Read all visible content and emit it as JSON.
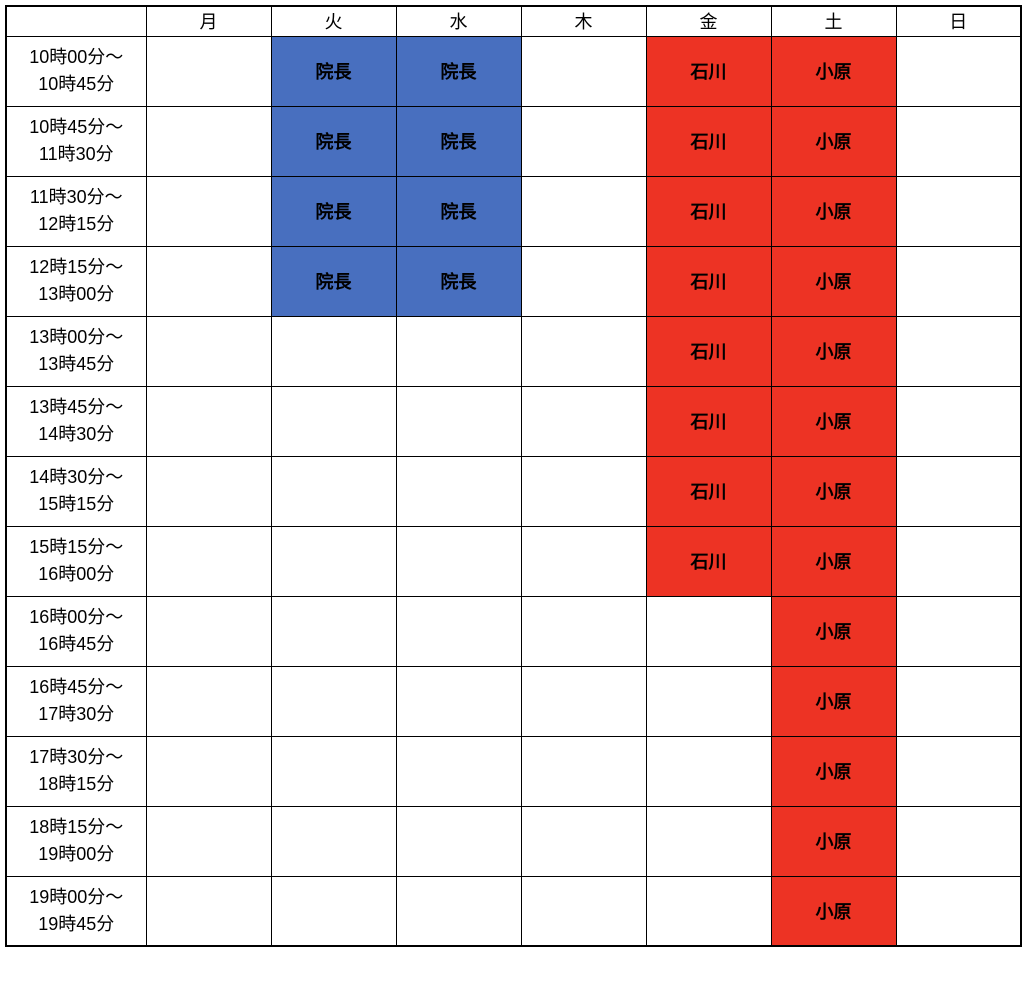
{
  "table": {
    "type": "table",
    "background_color": "#ffffff",
    "border_color": "#000000",
    "cell_colors": {
      "blue": "#486fbf",
      "red": "#ed3324",
      "empty": "#ffffff"
    },
    "text_color": "#000000",
    "header_fontsize": 18,
    "time_fontsize": 18,
    "cell_fontsize": 20,
    "cell_fontweight": "bold",
    "day_headers": [
      "月",
      "火",
      "水",
      "木",
      "金",
      "土",
      "日"
    ],
    "time_slots": [
      "10時00分～\n10時45分",
      "10時45分～\n11時30分",
      "11時30分～\n12時15分",
      "12時15分～\n13時00分",
      "13時00分～\n13時45分",
      "13時45分～\n14時30分",
      "14時30分～\n15時15分",
      "15時15分～\n16時00分",
      "16時00分～\n16時45分",
      "16時45分～\n17時30分",
      "17時30分～\n18時15分",
      "18時15分～\n19時00分",
      "19時00分～\n19時45分"
    ],
    "cells": [
      [
        {
          "text": "",
          "color": "empty"
        },
        {
          "text": "院長",
          "color": "blue"
        },
        {
          "text": "院長",
          "color": "blue"
        },
        {
          "text": "",
          "color": "empty"
        },
        {
          "text": "石川",
          "color": "red"
        },
        {
          "text": "小原",
          "color": "red"
        },
        {
          "text": "",
          "color": "empty"
        }
      ],
      [
        {
          "text": "",
          "color": "empty"
        },
        {
          "text": "院長",
          "color": "blue"
        },
        {
          "text": "院長",
          "color": "blue"
        },
        {
          "text": "",
          "color": "empty"
        },
        {
          "text": "石川",
          "color": "red"
        },
        {
          "text": "小原",
          "color": "red"
        },
        {
          "text": "",
          "color": "empty"
        }
      ],
      [
        {
          "text": "",
          "color": "empty"
        },
        {
          "text": "院長",
          "color": "blue"
        },
        {
          "text": "院長",
          "color": "blue"
        },
        {
          "text": "",
          "color": "empty"
        },
        {
          "text": "石川",
          "color": "red"
        },
        {
          "text": "小原",
          "color": "red"
        },
        {
          "text": "",
          "color": "empty"
        }
      ],
      [
        {
          "text": "",
          "color": "empty"
        },
        {
          "text": "院長",
          "color": "blue"
        },
        {
          "text": "院長",
          "color": "blue"
        },
        {
          "text": "",
          "color": "empty"
        },
        {
          "text": "石川",
          "color": "red"
        },
        {
          "text": "小原",
          "color": "red"
        },
        {
          "text": "",
          "color": "empty"
        }
      ],
      [
        {
          "text": "",
          "color": "empty"
        },
        {
          "text": "",
          "color": "empty"
        },
        {
          "text": "",
          "color": "empty"
        },
        {
          "text": "",
          "color": "empty"
        },
        {
          "text": "石川",
          "color": "red"
        },
        {
          "text": "小原",
          "color": "red"
        },
        {
          "text": "",
          "color": "empty"
        }
      ],
      [
        {
          "text": "",
          "color": "empty"
        },
        {
          "text": "",
          "color": "empty"
        },
        {
          "text": "",
          "color": "empty"
        },
        {
          "text": "",
          "color": "empty"
        },
        {
          "text": "石川",
          "color": "red"
        },
        {
          "text": "小原",
          "color": "red"
        },
        {
          "text": "",
          "color": "empty"
        }
      ],
      [
        {
          "text": "",
          "color": "empty"
        },
        {
          "text": "",
          "color": "empty"
        },
        {
          "text": "",
          "color": "empty"
        },
        {
          "text": "",
          "color": "empty"
        },
        {
          "text": "石川",
          "color": "red"
        },
        {
          "text": "小原",
          "color": "red"
        },
        {
          "text": "",
          "color": "empty"
        }
      ],
      [
        {
          "text": "",
          "color": "empty"
        },
        {
          "text": "",
          "color": "empty"
        },
        {
          "text": "",
          "color": "empty"
        },
        {
          "text": "",
          "color": "empty"
        },
        {
          "text": "石川",
          "color": "red"
        },
        {
          "text": "小原",
          "color": "red"
        },
        {
          "text": "",
          "color": "empty"
        }
      ],
      [
        {
          "text": "",
          "color": "empty"
        },
        {
          "text": "",
          "color": "empty"
        },
        {
          "text": "",
          "color": "empty"
        },
        {
          "text": "",
          "color": "empty"
        },
        {
          "text": "",
          "color": "empty"
        },
        {
          "text": "小原",
          "color": "red"
        },
        {
          "text": "",
          "color": "empty"
        }
      ],
      [
        {
          "text": "",
          "color": "empty"
        },
        {
          "text": "",
          "color": "empty"
        },
        {
          "text": "",
          "color": "empty"
        },
        {
          "text": "",
          "color": "empty"
        },
        {
          "text": "",
          "color": "empty"
        },
        {
          "text": "小原",
          "color": "red"
        },
        {
          "text": "",
          "color": "empty"
        }
      ],
      [
        {
          "text": "",
          "color": "empty"
        },
        {
          "text": "",
          "color": "empty"
        },
        {
          "text": "",
          "color": "empty"
        },
        {
          "text": "",
          "color": "empty"
        },
        {
          "text": "",
          "color": "empty"
        },
        {
          "text": "小原",
          "color": "red"
        },
        {
          "text": "",
          "color": "empty"
        }
      ],
      [
        {
          "text": "",
          "color": "empty"
        },
        {
          "text": "",
          "color": "empty"
        },
        {
          "text": "",
          "color": "empty"
        },
        {
          "text": "",
          "color": "empty"
        },
        {
          "text": "",
          "color": "empty"
        },
        {
          "text": "小原",
          "color": "red"
        },
        {
          "text": "",
          "color": "empty"
        }
      ],
      [
        {
          "text": "",
          "color": "empty"
        },
        {
          "text": "",
          "color": "empty"
        },
        {
          "text": "",
          "color": "empty"
        },
        {
          "text": "",
          "color": "empty"
        },
        {
          "text": "",
          "color": "empty"
        },
        {
          "text": "小原",
          "color": "red"
        },
        {
          "text": "",
          "color": "empty"
        }
      ]
    ]
  }
}
